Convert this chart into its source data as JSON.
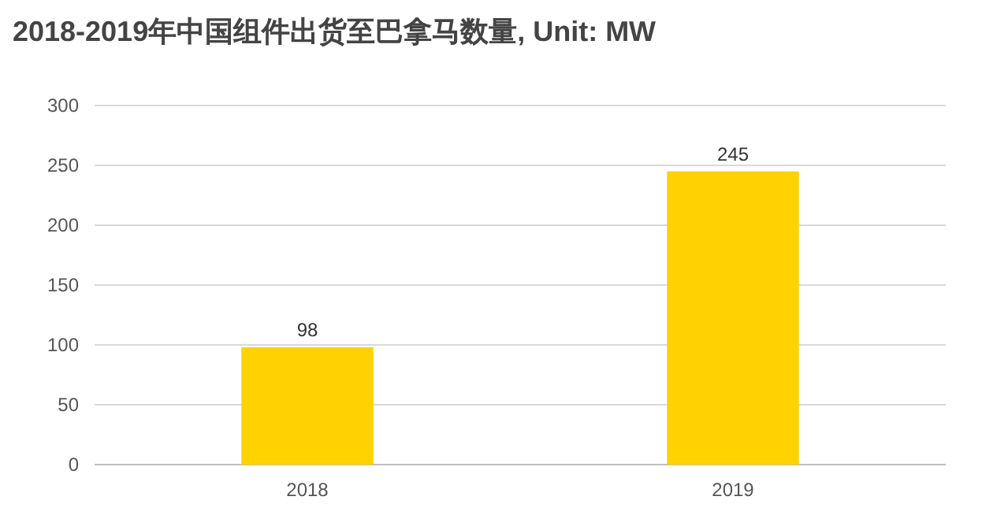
{
  "chart_data": {
    "type": "bar",
    "title": "2018-2019年中国组件出货至巴拿马数量, Unit: MW",
    "categories": [
      "2018",
      "2019"
    ],
    "values": [
      98,
      245
    ],
    "color": "#ffd200",
    "ylim": [
      0,
      300
    ],
    "yticks": [
      0,
      50,
      100,
      150,
      200,
      250,
      300
    ],
    "grid": "y",
    "data_labels": true
  }
}
